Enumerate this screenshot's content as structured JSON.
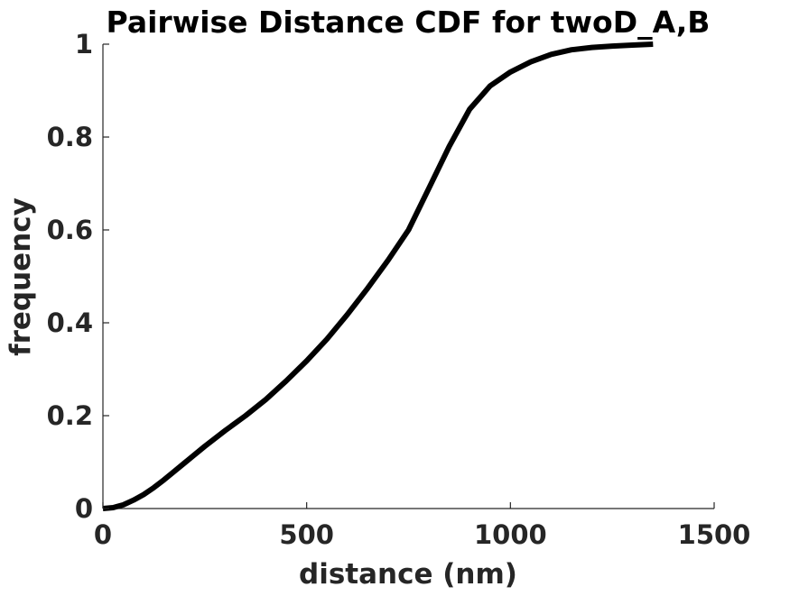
{
  "chart_data": {
    "type": "line",
    "title": "Pairwise Distance CDF for twoD_A,B",
    "xlabel": "distance (nm)",
    "ylabel": "frequency",
    "xlim": [
      0,
      1500
    ],
    "ylim": [
      0,
      1
    ],
    "xticks": [
      0,
      500,
      1000,
      1500
    ],
    "xtick_labels": [
      "0",
      "500",
      "1000",
      "1500"
    ],
    "yticks": [
      0,
      0.2,
      0.4,
      0.6,
      0.8,
      1
    ],
    "ytick_labels": [
      "0",
      "0.2",
      "0.4",
      "0.6",
      "0.8",
      "1"
    ],
    "grid": false,
    "line_color": "#000000",
    "series": [
      {
        "x": [
          0,
          25,
          50,
          75,
          100,
          125,
          150,
          175,
          200,
          250,
          300,
          350,
          400,
          450,
          500,
          550,
          600,
          650,
          700,
          750,
          800,
          850,
          900,
          950,
          1000,
          1050,
          1100,
          1150,
          1200,
          1250,
          1300,
          1350
        ],
        "y": [
          0,
          0.002,
          0.008,
          0.018,
          0.03,
          0.045,
          0.062,
          0.08,
          0.098,
          0.134,
          0.168,
          0.2,
          0.235,
          0.275,
          0.318,
          0.365,
          0.418,
          0.475,
          0.535,
          0.6,
          0.69,
          0.78,
          0.86,
          0.91,
          0.94,
          0.962,
          0.978,
          0.988,
          0.993,
          0.996,
          0.998,
          1.0
        ]
      }
    ]
  }
}
